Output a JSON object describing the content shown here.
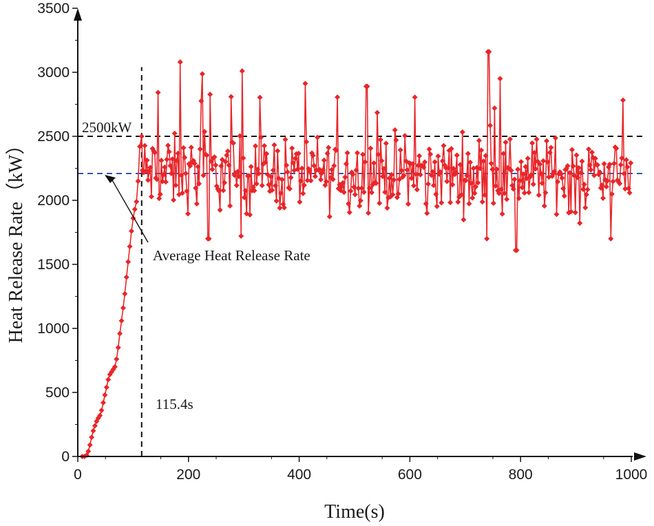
{
  "chart_data": {
    "type": "line",
    "title": "",
    "xlabel": "Time(s)",
    "ylabel": "Heat Release Rate（kW）",
    "xlim": [
      0,
      1000
    ],
    "ylim": [
      0,
      3500
    ],
    "xticks": [
      0,
      200,
      400,
      600,
      800,
      1000
    ],
    "yticks": [
      0,
      500,
      1000,
      1500,
      2000,
      2500,
      3000,
      3500
    ],
    "series": [
      {
        "name": "Heat Release Rate",
        "color": "#e8262a",
        "marker": "diamond",
        "ramp_points": [
          [
            8,
            0
          ],
          [
            12,
            0
          ],
          [
            16,
            10
          ],
          [
            19,
            40
          ],
          [
            22,
            90
          ],
          [
            25,
            150
          ],
          [
            28,
            200
          ],
          [
            31,
            240
          ],
          [
            34,
            275
          ],
          [
            37,
            300
          ],
          [
            40,
            320
          ],
          [
            43,
            360
          ],
          [
            46,
            420
          ],
          [
            49,
            480
          ],
          [
            52,
            540
          ],
          [
            55,
            600
          ],
          [
            58,
            640
          ],
          [
            61,
            660
          ],
          [
            64,
            680
          ],
          [
            67,
            700
          ],
          [
            70,
            760
          ],
          [
            73,
            850
          ],
          [
            76,
            960
          ],
          [
            79,
            1060
          ],
          [
            82,
            1160
          ],
          [
            85,
            1270
          ],
          [
            88,
            1400
          ],
          [
            91,
            1520
          ],
          [
            94,
            1640
          ],
          [
            97,
            1760
          ],
          [
            100,
            1860
          ],
          [
            103,
            1930
          ],
          [
            106,
            1990
          ],
          [
            109,
            2150
          ],
          [
            112,
            2420
          ],
          [
            115.4,
            2500
          ]
        ],
        "steady_range": [
          115.4,
          1000
        ],
        "steady_step": 2,
        "steady_mean": 2210,
        "steady_min": 1600,
        "steady_max": 3160,
        "peaks": [
          [
            185,
            3080
          ],
          [
            297,
            3010
          ],
          [
            522,
            2890
          ],
          [
            742,
            3160
          ],
          [
            763,
            2950
          ],
          [
            792,
            1610
          ],
          [
            236,
            1700
          ]
        ]
      }
    ],
    "reference_lines": [
      {
        "orientation": "horizontal",
        "value": 2500,
        "color": "#111111",
        "style": "dashed",
        "label": "2500kW"
      },
      {
        "orientation": "horizontal",
        "value": 2210,
        "color": "#3355aa",
        "style": "dashed",
        "label": "Average Heat Release Rate"
      },
      {
        "orientation": "vertical",
        "value": 115.4,
        "color": "#111111",
        "style": "dashed",
        "label": "115.4s"
      }
    ]
  }
}
